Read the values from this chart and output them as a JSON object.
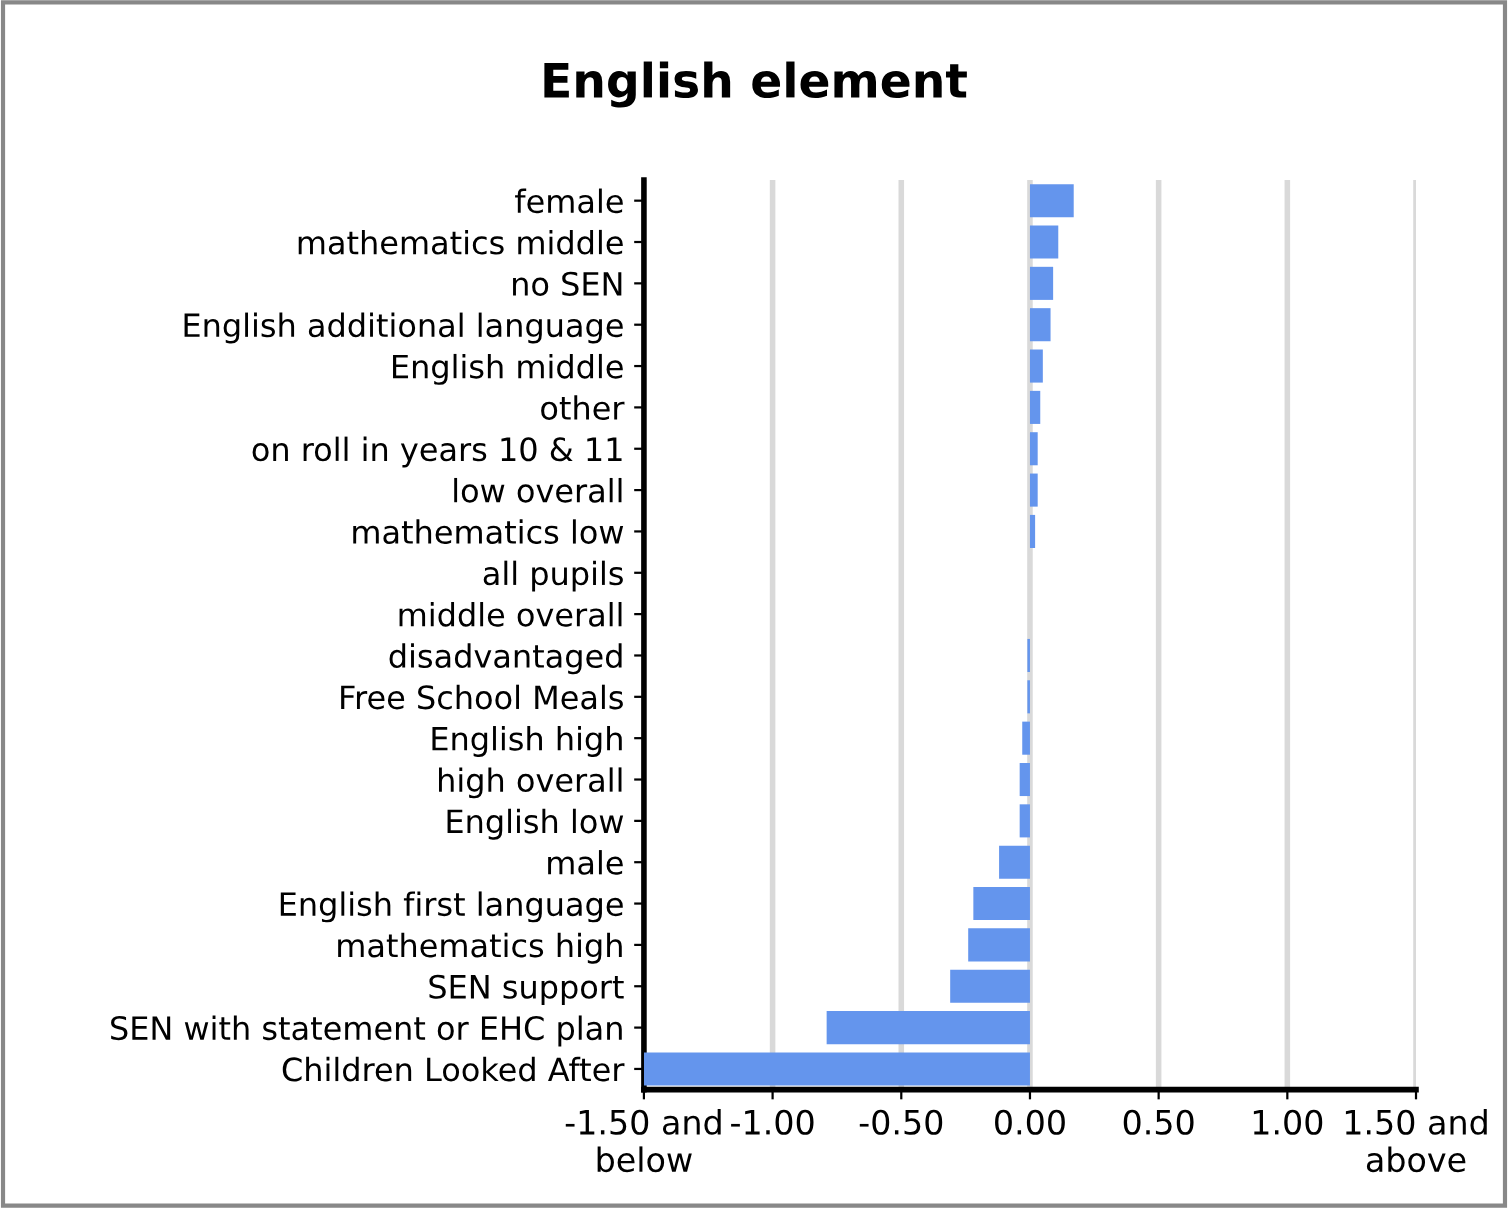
{
  "chart_data": {
    "type": "bar",
    "orientation": "horizontal",
    "title": "English element",
    "categories": [
      "female",
      "mathematics middle",
      "no SEN",
      "English additional language",
      "English middle",
      "other",
      "on roll in years 10 & 11",
      "low overall",
      "mathematics low",
      "all pupils",
      "middle overall",
      "disadvantaged",
      "Free School Meals",
      "English high",
      "high overall",
      "English low",
      "male",
      "English first language",
      "mathematics high",
      "SEN support",
      "SEN with statement or EHC plan",
      "Children Looked After"
    ],
    "values": [
      0.17,
      0.11,
      0.09,
      0.08,
      0.05,
      0.04,
      0.03,
      0.03,
      0.02,
      0,
      0,
      -0.01,
      -0.01,
      -0.03,
      -0.04,
      -0.04,
      -0.12,
      -0.22,
      -0.24,
      -0.31,
      -0.79,
      -1.5
    ],
    "color": "#6495ed",
    "xlim": [
      -1.5,
      1.5
    ],
    "xticks": [
      {
        "value": -1.5,
        "label": "-1.50 and\nbelow"
      },
      {
        "value": -1,
        "label": "-1.00"
      },
      {
        "value": -0.5,
        "label": "-0.50"
      },
      {
        "value": 0,
        "label": "0.00"
      },
      {
        "value": 0.5,
        "label": "0.50"
      },
      {
        "value": 1,
        "label": "1.00"
      },
      {
        "value": 1.5,
        "label": "1.50 and\nabove"
      }
    ],
    "grid": "x"
  }
}
